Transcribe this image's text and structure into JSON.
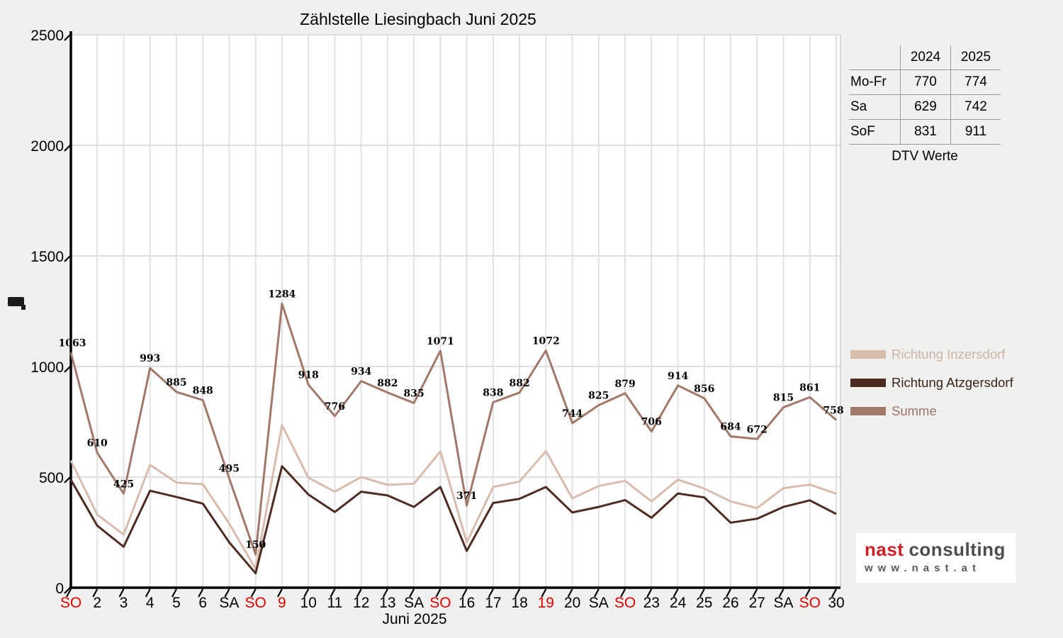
{
  "chart_data": {
    "type": "line",
    "title": "Zählstelle Liesingbach Juni 2025",
    "xlabel": "Juni 2025",
    "ylim": [
      0,
      2500
    ],
    "y_ticks": [
      0,
      500,
      1000,
      1500,
      2000,
      2500
    ],
    "x_labels": [
      "SO",
      "2",
      "3",
      "4",
      "5",
      "6",
      "SA",
      "SO",
      "9",
      "10",
      "11",
      "12",
      "13",
      "SA",
      "SO",
      "16",
      "17",
      "18",
      "19",
      "20",
      "SA",
      "SO",
      "23",
      "24",
      "25",
      "26",
      "27",
      "SA",
      "SO",
      "30"
    ],
    "holiday_label_indices": [
      0,
      7,
      8,
      14,
      18,
      21,
      28
    ],
    "holiday_label_color": "#e00000",
    "series": [
      {
        "name": "Richtung Inzersdorf",
        "color": "#d8bcae",
        "values": [
          575,
          330,
          240,
          555,
          475,
          468,
          290,
          85,
          735,
          497,
          434,
          500,
          465,
          470,
          616,
          205,
          455,
          480,
          617,
          404,
          460,
          483,
          390,
          488,
          448,
          390,
          360,
          450,
          466,
          425
        ]
      },
      {
        "name": "Richtung Atzgersdorf",
        "color": "#4e2c22",
        "values": [
          488,
          280,
          185,
          438,
          410,
          380,
          205,
          65,
          549,
          421,
          342,
          434,
          417,
          365,
          455,
          166,
          383,
          402,
          455,
          340,
          365,
          396,
          316,
          426,
          408,
          294,
          312,
          365,
          395,
          333
        ]
      },
      {
        "name": "Summe",
        "color": "#a0796a",
        "show_labels": true,
        "values": [
          1063,
          610,
          425,
          993,
          885,
          848,
          495,
          150,
          1284,
          918,
          776,
          934,
          882,
          835,
          1071,
          371,
          838,
          882,
          1072,
          744,
          825,
          879,
          706,
          914,
          856,
          684,
          672,
          815,
          861,
          758
        ]
      }
    ]
  },
  "dtv_table": {
    "col_headers": [
      "2024",
      "2025"
    ],
    "rows": [
      {
        "label": "Mo-Fr",
        "y2024": "770",
        "y2025": "774"
      },
      {
        "label": "Sa",
        "y2024": "629",
        "y2025": "742"
      },
      {
        "label": "SoF",
        "y2024": "831",
        "y2025": "911"
      }
    ],
    "caption": "DTV Werte"
  },
  "legend": [
    {
      "label": "Richtung Inzersdorf",
      "swatch_color": "#d8bcae",
      "label_color": "#ccb2a5"
    },
    {
      "label": "Richtung Atzgersdorf",
      "swatch_color": "#4e2c22",
      "label_color": "#3a231c"
    },
    {
      "label": "Summe",
      "swatch_color": "#a0796a",
      "label_color": "#9b7263"
    }
  ],
  "logo": {
    "name_red": "nast",
    "name_dark": "consulting",
    "website": "www.nast.at"
  }
}
